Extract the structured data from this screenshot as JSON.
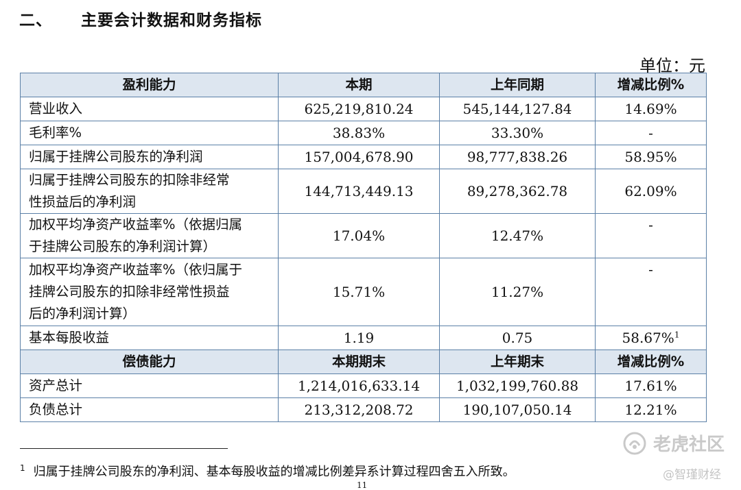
{
  "heading": {
    "number": "二、",
    "title": "主要会计数据和财务指标"
  },
  "unit_label": "单位：元",
  "table": {
    "section1_header": [
      "盈利能力",
      "本期",
      "上年同期",
      "增减比例%"
    ],
    "section1_rows": [
      {
        "label_lines": [
          "营业收入"
        ],
        "current": "625,219,810.24",
        "prior": "545,144,127.84",
        "change": "14.69%"
      },
      {
        "label_lines": [
          "毛利率%"
        ],
        "current": "38.83%",
        "prior": "33.30%",
        "change": "-"
      },
      {
        "label_lines": [
          "归属于挂牌公司股东的净利润"
        ],
        "current": "157,004,678.90",
        "prior": "98,777,838.26",
        "change": "58.95%"
      },
      {
        "label_lines": [
          "归属于挂牌公司股东的扣除非经常",
          "性损益后的净利润"
        ],
        "current": "144,713,449.13",
        "prior": "89,278,362.78",
        "change": "62.09%"
      },
      {
        "label_lines": [
          "加权平均净资产收益率%（依据归属",
          "于挂牌公司股东的净利润计算）"
        ],
        "current": "17.04%",
        "prior": "12.47%",
        "change": "-"
      },
      {
        "label_lines": [
          "加权平均净资产收益率%（依归属于",
          "挂牌公司股东的扣除非经常性损益",
          "后的净利润计算）"
        ],
        "current": "15.71%",
        "prior": "11.27%",
        "change": "-"
      },
      {
        "label_lines": [
          "基本每股收益"
        ],
        "current": "1.19",
        "prior": "0.75",
        "change": "58.67%",
        "change_sup": "1"
      }
    ],
    "section2_header": [
      "偿债能力",
      "本期期末",
      "上年期末",
      "增减比例%"
    ],
    "section2_rows": [
      {
        "label": "资产总计",
        "current": "1,214,016,633.14",
        "prior": "1,032,199,760.88",
        "change": "17.61%"
      },
      {
        "label": "负债总计",
        "current": "213,312,208.72",
        "prior": "190,107,050.14",
        "change": "12.21%"
      }
    ]
  },
  "footnote": {
    "mark": "1",
    "text": "归属于挂牌公司股东的净利润、基本每股收益的增减比例差异系计算过程四舍五入所致。"
  },
  "watermark": {
    "brand": "老虎社区",
    "account": "@智瑾财经",
    "icon": "tiger-community-logo-icon",
    "color": "#c9c9c9"
  },
  "page_number": "11",
  "colors": {
    "border": "#5a7fa6",
    "header_bg": "#dde6f0"
  }
}
